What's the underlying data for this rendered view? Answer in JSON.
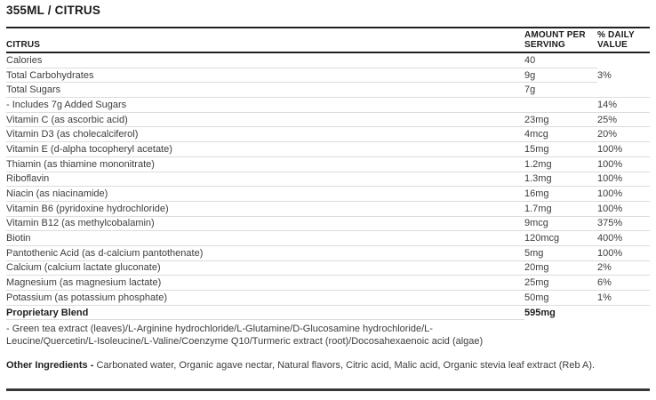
{
  "page_title": "355ML / CITRUS",
  "colors": {
    "rule_dark": "#212121",
    "divider": "#dcdcdc",
    "body_text": "#3d3d3d",
    "heading_text": "#1b1b1b"
  },
  "table": {
    "columns": {
      "name": "CITRUS",
      "amount": "AMOUNT PER SERVING",
      "daily_value": "% DAILY VALUE"
    },
    "rows": [
      {
        "label": "Calories",
        "amount": "40",
        "dv": ""
      },
      {
        "label": "Total Carbohydrates",
        "amount": "9g",
        "dv": "3%"
      },
      {
        "label": "Total Sugars",
        "amount": "7g",
        "dv": ""
      },
      {
        "label": "- Includes 7g Added Sugars",
        "amount": "",
        "dv": "14%"
      },
      {
        "label": "Vitamin C (as ascorbic acid)",
        "amount": "23mg",
        "dv": "25%"
      },
      {
        "label": "Vitamin D3 (as cholecalciferol)",
        "amount": "4mcg",
        "dv": "20%"
      },
      {
        "label": "Vitamin E (d-alpha tocopheryl acetate)",
        "amount": "15mg",
        "dv": "100%"
      },
      {
        "label": "Thiamin (as thiamine mononitrate)",
        "amount": "1.2mg",
        "dv": "100%"
      },
      {
        "label": "Riboflavin",
        "amount": "1.3mg",
        "dv": "100%"
      },
      {
        "label": "Niacin (as niacinamide)",
        "amount": "16mg",
        "dv": "100%"
      },
      {
        "label": "Vitamin B6 (pyridoxine hydrochloride)",
        "amount": "1.7mg",
        "dv": "100%"
      },
      {
        "label": "Vitamin B12 (as methylcobalamin)",
        "amount": "9mcg",
        "dv": "375%"
      },
      {
        "label": "Biotin",
        "amount": "120mcg",
        "dv": "400%"
      },
      {
        "label": "Pantothenic Acid (as d-calcium pantothenate)",
        "amount": "5mg",
        "dv": "100%"
      },
      {
        "label": "Calcium (calcium lactate gluconate)",
        "amount": "20mg",
        "dv": "2%"
      },
      {
        "label": "Magnesium (as magnesium lactate)",
        "amount": "25mg",
        "dv": "6%"
      },
      {
        "label": "Potassium (as potassium phosphate)",
        "amount": "50mg",
        "dv": "1%"
      },
      {
        "label": "Proprietary Blend",
        "amount": "595mg",
        "dv": ""
      }
    ],
    "blend_description": "- Green tea extract (leaves)/L-Arginine hydrochloride/L-Glutamine/D-Glucosamine hydrochloride/L-Leucine/Quercetin/L-Isoleucine/L-Valine/Coenzyme Q10/Turmeric extract (root)/Docosahexaenoic acid (algae)"
  },
  "footer": {
    "other_ingredients_label": "Other Ingredients -",
    "other_ingredients_text": "Carbonated water, Organic agave nectar, Natural flavors, Citric acid, Malic acid, Organic stevia leaf extract (Reb A)."
  }
}
